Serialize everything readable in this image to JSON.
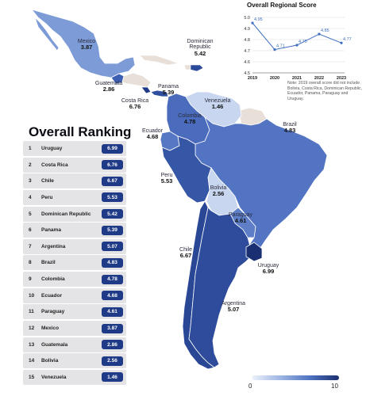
{
  "ranking": {
    "title": "Overall Ranking",
    "items": [
      {
        "rank": "1",
        "country": "Uruguay",
        "score": "6.99"
      },
      {
        "rank": "2",
        "country": "Costa Rica",
        "score": "6.76"
      },
      {
        "rank": "3",
        "country": "Chile",
        "score": "6.67"
      },
      {
        "rank": "4",
        "country": "Peru",
        "score": "5.53"
      },
      {
        "rank": "5",
        "country": "Dominican Republic",
        "score": "5.42"
      },
      {
        "rank": "6",
        "country": "Panama",
        "score": "5.39"
      },
      {
        "rank": "7",
        "country": "Argentina",
        "score": "5.07"
      },
      {
        "rank": "8",
        "country": "Brazil",
        "score": "4.83"
      },
      {
        "rank": "9",
        "country": "Colombia",
        "score": "4.78"
      },
      {
        "rank": "10",
        "country": "Ecuador",
        "score": "4.68"
      },
      {
        "rank": "11",
        "country": "Paraguay",
        "score": "4.61"
      },
      {
        "rank": "12",
        "country": "Mexico",
        "score": "3.87"
      },
      {
        "rank": "13",
        "country": "Guatemala",
        "score": "2.86"
      },
      {
        "rank": "14",
        "country": "Bolivia",
        "score": "2.56"
      },
      {
        "rank": "15",
        "country": "Venezuela",
        "score": "1.46"
      }
    ]
  },
  "map_labels": {
    "mexico": {
      "name": "Mexico",
      "score": "3.87"
    },
    "dominican_republic": {
      "name": "Dominican Republic",
      "score": "5.42"
    },
    "guatemala": {
      "name": "Guatemala",
      "score": "2.86"
    },
    "panama": {
      "name": "Panama",
      "score": "5.39"
    },
    "costa_rica": {
      "name": "Costa Rica",
      "score": "6.76"
    },
    "venezuela": {
      "name": "Venezuela",
      "score": "1.46"
    },
    "colombia": {
      "name": "Colombia",
      "score": "4.78"
    },
    "ecuador": {
      "name": "Ecuador",
      "score": "4.68"
    },
    "brazil": {
      "name": "Brazil",
      "score": "4.83"
    },
    "peru": {
      "name": "Peru",
      "score": "5.53"
    },
    "bolivia": {
      "name": "Bolivia",
      "score": "2.56"
    },
    "paraguay": {
      "name": "Paraguay",
      "score": "4.61"
    },
    "chile": {
      "name": "Chile",
      "score": "6.67"
    },
    "uruguay": {
      "name": "Uruguay",
      "score": "6.99"
    },
    "argentina": {
      "name": "Argentina",
      "score": "5.07"
    }
  },
  "legend": {
    "min": "0",
    "max": "10"
  },
  "colors": {
    "low": "#c9d6ef",
    "mid": "#5d7fca",
    "high": "#1f3a86",
    "no_data": "#e8dfd8",
    "line": "#3f6fbf"
  },
  "chart_data": {
    "type": "line",
    "title": "Overall Regional Score",
    "x": [
      "2019",
      "2020",
      "2021",
      "2022",
      "2023"
    ],
    "values": [
      4.95,
      4.71,
      4.75,
      4.85,
      4.77
    ],
    "value_labels": [
      "4.95",
      "4.71",
      "4.75",
      "4.85",
      "4.77"
    ],
    "ylim": [
      4.5,
      5.0
    ],
    "yticks": [
      "5.0",
      "4.9",
      "4.8",
      "4.7",
      "4.6",
      "4.5"
    ],
    "grid": true,
    "note": "Note: 2019 overall score did not include Bolivia, Costa Rica, Dominican Republic, Ecuador, Panama, Paraguay and Uruguay."
  }
}
